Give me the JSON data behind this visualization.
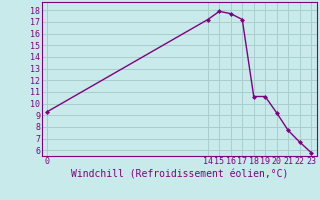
{
  "x": [
    0,
    14,
    15,
    16,
    17,
    18,
    19,
    20,
    21,
    22,
    23
  ],
  "y": [
    9.3,
    17.2,
    17.9,
    17.7,
    17.2,
    10.6,
    10.6,
    9.2,
    7.7,
    6.7,
    5.8
  ],
  "line_color": "#800080",
  "marker": "D",
  "marker_size": 2.0,
  "bg_color": "#c8eaea",
  "grid_color": "#a8cece",
  "xlabel": "Windchill (Refroidissement éolien,°C)",
  "xlabel_color": "#800080",
  "tick_color": "#800080",
  "spine_color": "#800080",
  "ylim": [
    5.5,
    18.7
  ],
  "xlim": [
    -0.5,
    23.5
  ],
  "yticks": [
    6,
    7,
    8,
    9,
    10,
    11,
    12,
    13,
    14,
    15,
    16,
    17,
    18
  ],
  "xticks": [
    0,
    14,
    15,
    16,
    17,
    18,
    19,
    20,
    21,
    22,
    23
  ],
  "xtick_labels": [
    "0",
    "14",
    "15",
    "16",
    "17",
    "18",
    "19",
    "20",
    "21",
    "22",
    "23"
  ],
  "font_size": 6.0,
  "xlabel_font_size": 7.0,
  "linewidth": 1.0
}
